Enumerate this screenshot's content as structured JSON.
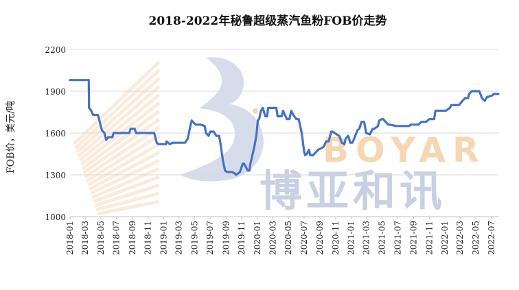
{
  "chart_data": {
    "type": "line",
    "title": "2018-2022年秘鲁超级蒸汽鱼粉FOB价走势",
    "ylabel": "FOB价，美元/吨",
    "xlabel": "",
    "ylim": [
      1000,
      2200
    ],
    "yticks": [
      "1000",
      "1300",
      "1600",
      "1900",
      "2200"
    ],
    "x_start": "2018-01",
    "x_end": "2022-07",
    "x_ticks": [
      "2018-01",
      "2018-03",
      "2018-05",
      "2018-07",
      "2018-09",
      "2018-11",
      "2019-01",
      "2019-03",
      "2019-05",
      "2019-07",
      "2019-09",
      "2019-11",
      "2020-01",
      "2020-03",
      "2020-05",
      "2020-07",
      "2020-09",
      "2020-11",
      "2021-01",
      "2021-03",
      "2021-05",
      "2021-07",
      "2021-09",
      "2021-11",
      "2022-01",
      "2022-03",
      "2022-05",
      "2022-07"
    ],
    "grid": "horizontal",
    "line_color": "#4472c4",
    "series": [
      {
        "name": "",
        "x": [
          "2018-01-01",
          "2018-03-15",
          "2018-03-16",
          "2018-03-25",
          "2018-04-01",
          "2018-04-20",
          "2018-05-05",
          "2018-05-15",
          "2018-05-22",
          "2018-05-30",
          "2018-06-15",
          "2018-06-20",
          "2018-07-10",
          "2018-07-18",
          "2018-08-20",
          "2018-08-25",
          "2018-09-10",
          "2018-09-15",
          "2018-10-20",
          "2018-10-25",
          "2018-11-25",
          "2018-12-05",
          "2018-12-12",
          "2018-12-25",
          "2019-01-10",
          "2019-01-12",
          "2019-01-25",
          "2019-02-05",
          "2019-03-25",
          "2019-04-05",
          "2019-04-15",
          "2019-04-20",
          "2019-05-05",
          "2019-05-25",
          "2019-06-10",
          "2019-06-15",
          "2019-06-25",
          "2019-07-01",
          "2019-07-15",
          "2019-07-25",
          "2019-08-05",
          "2019-08-10",
          "2019-08-20",
          "2019-08-28",
          "2019-09-05",
          "2019-09-25",
          "2019-10-05",
          "2019-10-10",
          "2019-10-25",
          "2019-11-05",
          "2019-11-10",
          "2019-11-25",
          "2019-12-01",
          "2019-12-05",
          "2019-12-20",
          "2019-12-28",
          "2020-01-03",
          "2020-01-08",
          "2020-01-15",
          "2020-01-22",
          "2020-02-01",
          "2020-02-08",
          "2020-02-12",
          "2020-02-20",
          "2020-03-15",
          "2020-03-20",
          "2020-04-05",
          "2020-04-10",
          "2020-04-25",
          "2020-05-05",
          "2020-05-12",
          "2020-05-20",
          "2020-06-01",
          "2020-06-10",
          "2020-06-22",
          "2020-07-01",
          "2020-07-05",
          "2020-07-12",
          "2020-07-20",
          "2020-07-25",
          "2020-08-05",
          "2020-08-15",
          "2020-08-25",
          "2020-09-05",
          "2020-09-15",
          "2020-09-25",
          "2020-10-05",
          "2020-10-15",
          "2020-10-20",
          "2020-11-05",
          "2020-11-15",
          "2020-11-25",
          "2020-12-05",
          "2020-12-10",
          "2020-12-20",
          "2020-12-28",
          "2021-01-05",
          "2021-01-10",
          "2021-01-25",
          "2021-02-01",
          "2021-02-10",
          "2021-02-20",
          "2021-02-28",
          "2021-03-15",
          "2021-03-25",
          "2021-04-01",
          "2021-04-15",
          "2021-04-20",
          "2021-05-01",
          "2021-05-05",
          "2021-05-25",
          "2021-06-01",
          "2021-06-25",
          "2021-07-01",
          "2021-08-15",
          "2021-08-20",
          "2021-09-20",
          "2021-10-01",
          "2021-10-20",
          "2021-11-01",
          "2021-11-20",
          "2021-11-25",
          "2021-12-25",
          "2022-01-05",
          "2022-01-20",
          "2022-01-25",
          "2022-02-25",
          "2022-03-05",
          "2022-03-20",
          "2022-04-01",
          "2022-04-05",
          "2022-04-15",
          "2022-05-15",
          "2022-05-25",
          "2022-06-05",
          "2022-06-15",
          "2022-06-20",
          "2022-07-05",
          "2022-07-10",
          "2022-07-28"
        ],
        "values": [
          1980,
          1980,
          1780,
          1760,
          1730,
          1730,
          1620,
          1600,
          1550,
          1570,
          1570,
          1600,
          1600,
          1600,
          1600,
          1630,
          1630,
          1600,
          1600,
          1600,
          1600,
          1530,
          1520,
          1520,
          1520,
          1540,
          1520,
          1530,
          1530,
          1560,
          1650,
          1690,
          1660,
          1660,
          1650,
          1600,
          1580,
          1610,
          1610,
          1580,
          1580,
          1530,
          1400,
          1330,
          1320,
          1320,
          1310,
          1300,
          1320,
          1380,
          1380,
          1330,
          1330,
          1380,
          1500,
          1580,
          1690,
          1700,
          1760,
          1780,
          1720,
          1720,
          1780,
          1780,
          1780,
          1720,
          1720,
          1760,
          1700,
          1700,
          1760,
          1730,
          1700,
          1700,
          1600,
          1470,
          1440,
          1450,
          1480,
          1440,
          1440,
          1460,
          1480,
          1490,
          1500,
          1540,
          1540,
          1610,
          1610,
          1590,
          1580,
          1530,
          1520,
          1560,
          1580,
          1530,
          1530,
          1550,
          1620,
          1630,
          1680,
          1680,
          1600,
          1590,
          1630,
          1630,
          1650,
          1690,
          1700,
          1700,
          1660,
          1660,
          1650,
          1650,
          1650,
          1660,
          1660,
          1680,
          1680,
          1700,
          1700,
          1760,
          1760,
          1760,
          1780,
          1800,
          1800,
          1820,
          1850,
          1850,
          1880,
          1900,
          1900,
          1850,
          1830,
          1860,
          1860,
          1870,
          1880,
          1880
        ]
      }
    ]
  },
  "watermark": {
    "letters": "BOYAR",
    "chinese": "博亚和讯",
    "brand_color": "#c9d0e4",
    "accent_color": "#f7d6b4"
  }
}
